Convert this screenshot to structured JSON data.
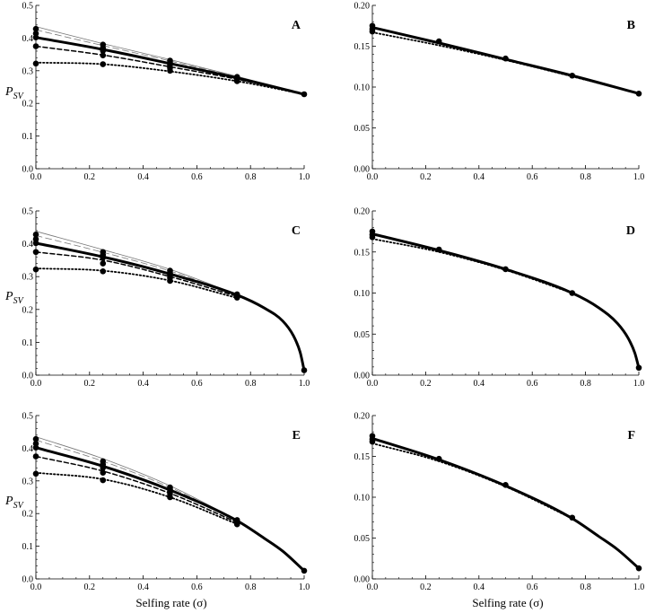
{
  "figure": {
    "xlabel": "Selfing rate  (σ)",
    "ylabel_main": "P",
    "ylabel_sub": "SV"
  },
  "chart_data": [
    {
      "panel": "A",
      "type": "line",
      "xlim": [
        0,
        1
      ],
      "ylim": [
        0,
        0.5
      ],
      "xticks": [
        "0.0",
        "0.2",
        "0.4",
        "0.6",
        "0.8",
        "1.0"
      ],
      "yticks": [
        "0.0",
        "0.1",
        "0.2",
        "0.3",
        "0.4",
        "0.5"
      ],
      "series": [
        {
          "style": "thin-solid",
          "x": [
            0,
            0.25,
            0.5,
            0.75,
            1
          ],
          "y": [
            0.435,
            0.383,
            0.334,
            0.283,
            0.228
          ]
        },
        {
          "style": "thin-dashed",
          "x": [
            0,
            0.25,
            0.5,
            0.75,
            1
          ],
          "y": [
            0.425,
            0.377,
            0.33,
            0.281,
            0.228
          ]
        },
        {
          "style": "thick-solid",
          "x": [
            0,
            0.25,
            0.5,
            0.75,
            1
          ],
          "y": [
            0.402,
            0.365,
            0.322,
            0.278,
            0.228
          ]
        },
        {
          "style": "dashed",
          "x": [
            0,
            0.25,
            0.5,
            0.75,
            1
          ],
          "y": [
            0.375,
            0.348,
            0.312,
            0.274,
            0.228
          ]
        },
        {
          "style": "dotted",
          "x": [
            0,
            0.25,
            0.5,
            0.75,
            1
          ],
          "y": [
            0.325,
            0.32,
            0.298,
            0.268,
            0.228
          ]
        }
      ],
      "points": [
        {
          "x": 0,
          "y": [
            0.428,
            0.414,
            0.402,
            0.375,
            0.322
          ]
        },
        {
          "x": 0.25,
          "y": [
            0.38,
            0.37,
            0.361,
            0.347,
            0.32
          ]
        },
        {
          "x": 0.5,
          "y": [
            0.331,
            0.324,
            0.318,
            0.309,
            0.3
          ]
        },
        {
          "x": 0.75,
          "y": [
            0.281,
            0.278,
            0.276,
            0.272,
            0.268
          ]
        },
        {
          "x": 1.0,
          "y": [
            0.228
          ]
        }
      ]
    },
    {
      "panel": "B",
      "type": "line",
      "xlim": [
        0,
        1
      ],
      "ylim": [
        0,
        0.2
      ],
      "xticks": [
        "0.0",
        "0.2",
        "0.4",
        "0.6",
        "0.8",
        "1.0"
      ],
      "yticks": [
        "0.00",
        "0.05",
        "0.10",
        "0.15",
        "0.20"
      ],
      "series": [
        {
          "style": "thick-solid",
          "x": [
            0,
            0.25,
            0.5,
            0.75,
            1
          ],
          "y": [
            0.173,
            0.154,
            0.134,
            0.114,
            0.092
          ]
        },
        {
          "style": "dotted",
          "x": [
            0,
            0.25,
            0.5,
            0.75,
            1
          ],
          "y": [
            0.167,
            0.151,
            0.133,
            0.113,
            0.092
          ]
        }
      ],
      "points": [
        {
          "x": 0,
          "y": [
            0.175,
            0.171,
            0.168
          ]
        },
        {
          "x": 0.25,
          "y": [
            0.156
          ]
        },
        {
          "x": 0.5,
          "y": [
            0.135
          ]
        },
        {
          "x": 0.75,
          "y": [
            0.114
          ]
        },
        {
          "x": 1.0,
          "y": [
            0.092
          ]
        }
      ]
    },
    {
      "panel": "C",
      "type": "line",
      "xlim": [
        0,
        1
      ],
      "ylim": [
        0,
        0.5
      ],
      "xticks": [
        "0.0",
        "0.2",
        "0.4",
        "0.6",
        "0.8",
        "1.0"
      ],
      "yticks": [
        "0.0",
        "0.1",
        "0.2",
        "0.3",
        "0.4",
        "0.5"
      ],
      "series": [
        {
          "style": "thin-solid",
          "x": [
            0,
            0.25,
            0.5,
            0.75
          ],
          "y": [
            0.438,
            0.382,
            0.322,
            0.246
          ]
        },
        {
          "style": "thin-dashed",
          "x": [
            0,
            0.25,
            0.5,
            0.75
          ],
          "y": [
            0.425,
            0.374,
            0.317,
            0.245
          ]
        },
        {
          "style": "thick-solid",
          "x": [
            0,
            0.25,
            0.5,
            0.75,
            0.85,
            0.92,
            0.96,
            0.985,
            1
          ],
          "y": [
            0.402,
            0.36,
            0.308,
            0.244,
            0.205,
            0.165,
            0.12,
            0.07,
            0.015
          ]
        },
        {
          "style": "dashed",
          "x": [
            0,
            0.25,
            0.5,
            0.75
          ],
          "y": [
            0.375,
            0.35,
            0.3,
            0.24
          ]
        },
        {
          "style": "dotted",
          "x": [
            0,
            0.25,
            0.5,
            0.75
          ],
          "y": [
            0.325,
            0.318,
            0.288,
            0.235
          ]
        }
      ],
      "points": [
        {
          "x": 0,
          "y": [
            0.428,
            0.414,
            0.402,
            0.375,
            0.322
          ]
        },
        {
          "x": 0.25,
          "y": [
            0.375,
            0.366,
            0.358,
            0.34,
            0.316
          ]
        },
        {
          "x": 0.5,
          "y": [
            0.318,
            0.31,
            0.303,
            0.296,
            0.287
          ]
        },
        {
          "x": 0.75,
          "y": [
            0.246,
            0.243,
            0.24,
            0.236
          ]
        },
        {
          "x": 1.0,
          "y": [
            0.015
          ]
        }
      ]
    },
    {
      "panel": "D",
      "type": "line",
      "xlim": [
        0,
        1
      ],
      "ylim": [
        0,
        0.2
      ],
      "xticks": [
        "0.0",
        "0.2",
        "0.4",
        "0.6",
        "0.8",
        "1.0"
      ],
      "yticks": [
        "0.00",
        "0.05",
        "0.10",
        "0.15",
        "0.20"
      ],
      "series": [
        {
          "style": "thick-solid",
          "x": [
            0,
            0.25,
            0.5,
            0.75,
            0.85,
            0.92,
            0.96,
            0.985,
            1
          ],
          "y": [
            0.172,
            0.152,
            0.129,
            0.1,
            0.082,
            0.063,
            0.045,
            0.027,
            0.009
          ]
        },
        {
          "style": "dotted",
          "x": [
            0,
            0.25,
            0.5,
            0.75
          ],
          "y": [
            0.166,
            0.15,
            0.128,
            0.1
          ]
        }
      ],
      "points": [
        {
          "x": 0,
          "y": [
            0.175,
            0.171,
            0.168
          ]
        },
        {
          "x": 0.25,
          "y": [
            0.153
          ]
        },
        {
          "x": 0.5,
          "y": [
            0.129
          ]
        },
        {
          "x": 0.75,
          "y": [
            0.1
          ]
        },
        {
          "x": 1.0,
          "y": [
            0.009
          ]
        }
      ]
    },
    {
      "panel": "E",
      "type": "line",
      "xlim": [
        0,
        1
      ],
      "ylim": [
        0,
        0.5
      ],
      "xticks": [
        "0.0",
        "0.2",
        "0.4",
        "0.6",
        "0.8",
        "1.0"
      ],
      "yticks": [
        "0.0",
        "0.1",
        "0.2",
        "0.3",
        "0.4",
        "0.5"
      ],
      "series": [
        {
          "style": "thin-solid",
          "x": [
            0,
            0.25,
            0.5,
            0.75
          ],
          "y": [
            0.435,
            0.368,
            0.285,
            0.181
          ]
        },
        {
          "style": "thin-dashed",
          "x": [
            0,
            0.25,
            0.5,
            0.75
          ],
          "y": [
            0.425,
            0.36,
            0.28,
            0.18
          ]
        },
        {
          "style": "thick-solid",
          "x": [
            0,
            0.25,
            0.5,
            0.75,
            0.85,
            0.92,
            1
          ],
          "y": [
            0.402,
            0.345,
            0.272,
            0.178,
            0.125,
            0.085,
            0.025
          ]
        },
        {
          "style": "dashed",
          "x": [
            0,
            0.25,
            0.5,
            0.75
          ],
          "y": [
            0.375,
            0.33,
            0.262,
            0.173
          ]
        },
        {
          "style": "dotted",
          "x": [
            0,
            0.25,
            0.5,
            0.75
          ],
          "y": [
            0.325,
            0.305,
            0.25,
            0.168
          ]
        }
      ],
      "points": [
        {
          "x": 0,
          "y": [
            0.428,
            0.414,
            0.402,
            0.375,
            0.322
          ]
        },
        {
          "x": 0.25,
          "y": [
            0.36,
            0.35,
            0.34,
            0.325,
            0.302
          ]
        },
        {
          "x": 0.5,
          "y": [
            0.28,
            0.274,
            0.268,
            0.26,
            0.25
          ]
        },
        {
          "x": 0.75,
          "y": [
            0.18,
            0.176,
            0.172,
            0.167
          ]
        },
        {
          "x": 1.0,
          "y": [
            0.025
          ]
        }
      ]
    },
    {
      "panel": "F",
      "type": "line",
      "xlim": [
        0,
        1
      ],
      "ylim": [
        0,
        0.2
      ],
      "xticks": [
        "0.0",
        "0.2",
        "0.4",
        "0.6",
        "0.8",
        "1.0"
      ],
      "yticks": [
        "0.00",
        "0.05",
        "0.10",
        "0.15",
        "0.20"
      ],
      "series": [
        {
          "style": "thick-solid",
          "x": [
            0,
            0.25,
            0.5,
            0.75,
            0.85,
            0.92,
            1
          ],
          "y": [
            0.172,
            0.146,
            0.114,
            0.074,
            0.052,
            0.036,
            0.013
          ]
        },
        {
          "style": "dotted",
          "x": [
            0,
            0.25,
            0.5,
            0.75
          ],
          "y": [
            0.166,
            0.144,
            0.113,
            0.074
          ]
        }
      ],
      "points": [
        {
          "x": 0,
          "y": [
            0.175,
            0.171,
            0.168
          ]
        },
        {
          "x": 0.25,
          "y": [
            0.147
          ]
        },
        {
          "x": 0.5,
          "y": [
            0.115
          ]
        },
        {
          "x": 0.75,
          "y": [
            0.075
          ]
        },
        {
          "x": 1.0,
          "y": [
            0.013
          ]
        }
      ]
    }
  ]
}
